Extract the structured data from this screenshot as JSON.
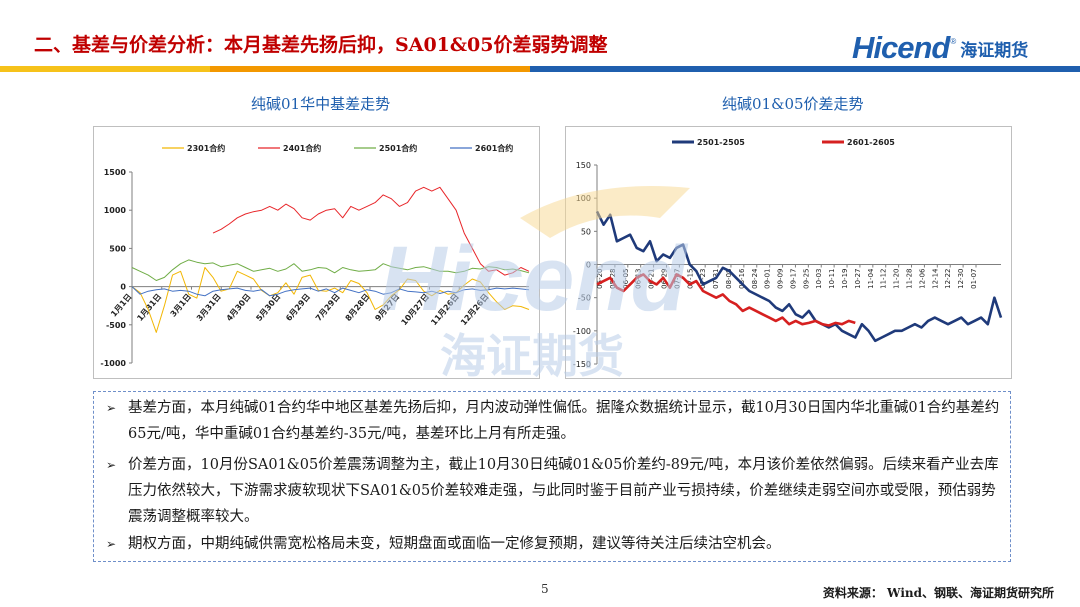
{
  "header": {
    "title": "二、基差与价差分析：本月基差先扬后抑，SA01&05价差弱势调整",
    "logo_word": "Hicend",
    "logo_reg": "®",
    "logo_cn": "海证期货"
  },
  "colors": {
    "title_red": "#c00000",
    "brand_blue": "#1f5fae",
    "band_blue": "#1f5fae",
    "band_yellow": "#f6c21a",
    "band_orange": "#f39800"
  },
  "charts_titles": {
    "left": "纯碱01华中基差走势",
    "right": "纯碱01&05价差走势"
  },
  "watermark": {
    "word": "Hicend",
    "cn": "海证期货",
    "reg": "®"
  },
  "chart_data": [
    {
      "type": "line",
      "title": "纯碱01华中基差走势",
      "ylim": [
        -1000,
        1500
      ],
      "yticks": [
        -1000,
        -500,
        0,
        500,
        1000,
        1500
      ],
      "xticks": [
        "1月1日",
        "1月31日",
        "3月1日",
        "3月31日",
        "4月30日",
        "5月30日",
        "6月29日",
        "7月29日",
        "8月28日",
        "9月27日",
        "10月27日",
        "11月26日",
        "12月26日"
      ],
      "legend_position": "top",
      "grid": false,
      "series": [
        {
          "name": "2301合约",
          "color": "#f2b705",
          "values": [
            0,
            -80,
            -300,
            -600,
            -250,
            150,
            200,
            -100,
            -150,
            250,
            120,
            -60,
            -30,
            200,
            150,
            100,
            -50,
            -120,
            -80,
            50,
            -100,
            120,
            150,
            -50,
            -60,
            -20,
            -80,
            80,
            40,
            -80,
            -300,
            -240,
            -120,
            -40,
            100,
            80,
            -60,
            -120,
            -50,
            -100,
            -80,
            20,
            100,
            60,
            -80,
            -200,
            -300,
            -250,
            -260,
            -300
          ]
        },
        {
          "name": "2401合约",
          "color": "#e8262a",
          "values": [
            null,
            null,
            null,
            null,
            null,
            null,
            null,
            null,
            null,
            null,
            700,
            750,
            820,
            900,
            950,
            980,
            1000,
            1050,
            1000,
            1080,
            1020,
            900,
            870,
            950,
            1000,
            1020,
            900,
            1050,
            1000,
            1050,
            1100,
            1200,
            1150,
            1050,
            1100,
            1250,
            1300,
            1250,
            1300,
            1150,
            1000,
            700,
            500,
            300,
            200,
            220,
            150,
            180,
            250,
            200
          ]
        },
        {
          "name": "2501合约",
          "color": "#70ad47",
          "values": [
            null,
            null,
            null,
            null,
            null,
            null,
            null,
            null,
            null,
            null,
            null,
            null,
            null,
            null,
            null,
            null,
            null,
            null,
            null,
            null,
            null,
            null,
            null,
            null,
            null,
            null,
            null,
            null,
            null,
            null,
            null,
            null,
            null,
            null,
            null,
            null,
            null,
            null,
            null,
            null,
            null,
            null,
            null,
            null,
            null,
            null,
            null,
            null,
            null,
            null
          ]
        },
        {
          "name": "2601合约",
          "color": "#4472c4",
          "values": [
            null,
            null,
            null,
            null,
            null,
            null,
            null,
            null,
            null,
            null,
            null,
            null,
            null,
            null,
            null,
            null,
            null,
            null,
            null,
            null,
            null,
            null,
            null,
            null,
            null,
            null,
            null,
            null,
            null,
            null,
            null,
            null,
            null,
            null,
            null,
            null,
            null,
            null,
            null,
            null,
            null,
            null,
            null,
            null,
            null,
            null,
            null,
            null,
            null,
            null
          ]
        }
      ],
      "series_extra": {
        "2501合约": [
          250,
          200,
          150,
          80,
          120,
          220,
          300,
          350,
          320,
          300,
          310,
          260,
          280,
          300,
          250,
          200,
          220,
          240,
          200,
          230,
          300,
          200,
          220,
          250,
          240,
          180,
          250,
          220,
          200,
          210,
          220,
          300,
          260,
          240,
          220,
          250,
          260,
          230,
          200,
          200,
          180,
          200,
          240,
          230,
          260,
          250,
          220,
          230,
          210,
          180
        ],
        "2601合约": [
          0,
          -100,
          -60,
          -40,
          -30,
          -60,
          -50,
          -60,
          -100,
          -120,
          -60,
          -40,
          -30,
          -20,
          -50,
          -60,
          -40,
          -120,
          -100,
          -60,
          -40,
          -30,
          -20,
          -60,
          -30,
          -80,
          -20,
          -50,
          -80,
          -40,
          -60,
          -100,
          -80,
          -30,
          -60,
          -70,
          -80,
          -60,
          -90,
          -60,
          -80,
          -40,
          -30,
          -50,
          -40,
          -20,
          -30,
          -20,
          -30,
          -40
        ]
      }
    },
    {
      "type": "line",
      "title": "纯碱01&05价差走势",
      "ylim": [
        -150,
        150
      ],
      "yticks": [
        -150,
        -100,
        -50,
        0,
        50,
        100,
        150
      ],
      "xticks": [
        "05-20",
        "05-28",
        "06-05",
        "06-13",
        "06-21",
        "06-29",
        "07-07",
        "07-15",
        "07-23",
        "07-31",
        "08-08",
        "08-16",
        "08-24",
        "09-01",
        "09-09",
        "09-17",
        "09-25",
        "10-03",
        "10-11",
        "10-19",
        "10-27",
        "11-04",
        "11-12",
        "11-20",
        "11-28",
        "12-06",
        "12-14",
        "12-22",
        "12-30",
        "01-07"
      ],
      "legend_position": "top",
      "grid": false,
      "series": [
        {
          "name": "2501-2505",
          "color": "#1f3a7a",
          "values": [
            80,
            60,
            75,
            35,
            40,
            45,
            25,
            20,
            35,
            5,
            15,
            10,
            25,
            30,
            0,
            -10,
            -30,
            -25,
            -20,
            -5,
            -10,
            -20,
            -30,
            -40,
            -45,
            -50,
            -55,
            -65,
            -70,
            -60,
            -75,
            -80,
            -70,
            -85,
            -90,
            -95,
            -90,
            -100,
            -105,
            -110,
            -90,
            -100,
            -115,
            -110,
            -105,
            -100,
            -100,
            -95,
            -90,
            -95,
            -85,
            -80,
            -85,
            -90,
            -85,
            -80,
            -90,
            -85,
            -80,
            -90,
            -50,
            -80
          ]
        },
        {
          "name": "2601-2605",
          "color": "#d62020",
          "values": [
            -30,
            -25,
            -20,
            -35,
            -40,
            -30,
            -20,
            -15,
            -25,
            -30,
            -20,
            -35,
            -15,
            -20,
            -30,
            -25,
            -40,
            -45,
            -50,
            -45,
            -55,
            -60,
            -70,
            -65,
            -70,
            -75,
            -80,
            -85,
            -80,
            -90,
            -85,
            -90,
            -88,
            -85,
            -90,
            -92,
            -88,
            -90,
            -85,
            -88,
            null,
            null,
            null,
            null,
            null,
            null,
            null,
            null,
            null,
            null,
            null,
            null,
            null,
            null,
            null,
            null,
            null,
            null,
            null,
            null,
            null,
            null
          ]
        }
      ]
    }
  ],
  "bullets": [
    {
      "arrow": "➢",
      "text": "基差方面，本月纯碱01合约华中地区基差先扬后抑，月内波动弹性偏低。据隆众数据统计显示，截10月30日国内华北重碱01合约基差约65元/吨，华中重碱01合约基差约-35元/吨，基差环比上月有所走强。"
    },
    {
      "arrow": "➢",
      "text": "价差方面，10月份SA01&05价差震荡调整为主，截止10月30日纯碱01&05价差约-89元/吨，本月该价差依然偏弱。后续来看产业去库压力依然较大，下游需求疲软现状下SA01&05价差较难走强，与此同时鉴于目前产业亏损持续，价差继续走弱空间亦或受限，预估弱势震荡调整概率较大。"
    },
    {
      "arrow": "➢",
      "text": "期权方面，中期纯碱供需宽松格局未变，短期盘面或面临一定修复预期，建议等待关注后续沽空机会。"
    }
  ],
  "footer": {
    "page_number": "5",
    "source": "资料来源：  Wind、钢联、海证期货研究所"
  }
}
